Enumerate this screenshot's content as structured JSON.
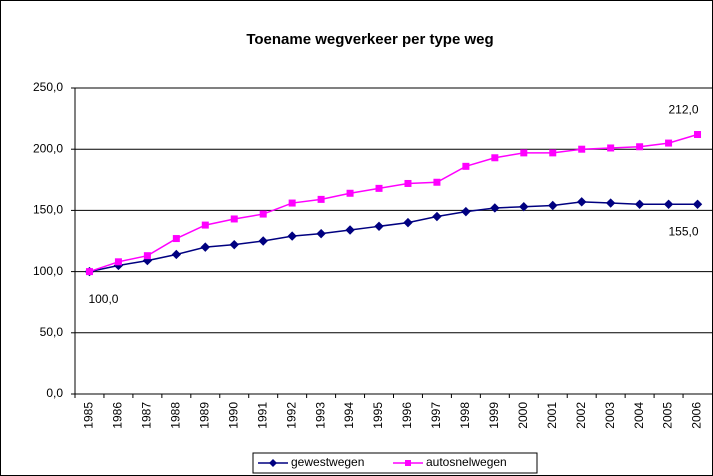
{
  "chart_data": {
    "type": "line",
    "title": "Toename wegverkeer per type weg",
    "categories": [
      "1985",
      "1986",
      "1987",
      "1988",
      "1989",
      "1990",
      "1991",
      "1992",
      "1993",
      "1994",
      "1995",
      "1996",
      "1997",
      "1998",
      "1999",
      "2000",
      "2001",
      "2002",
      "2003",
      "2004",
      "2005",
      "2006"
    ],
    "series": [
      {
        "name": "gewestwegen",
        "color": "#000080",
        "marker": "diamond",
        "values": [
          100,
          105,
          109,
          114,
          120,
          122,
          125,
          129,
          131,
          134,
          137,
          140,
          145,
          149,
          152,
          153,
          154,
          157,
          156,
          155,
          155,
          155
        ],
        "value_labels": [
          "100,0",
          null,
          null,
          null,
          null,
          null,
          null,
          null,
          null,
          null,
          null,
          null,
          null,
          null,
          null,
          null,
          null,
          null,
          null,
          null,
          null,
          "155,0"
        ]
      },
      {
        "name": "autosnelwegen",
        "color": "#ff00ff",
        "marker": "square",
        "values": [
          100,
          108,
          113,
          127,
          138,
          143,
          147,
          156,
          159,
          164,
          168,
          172,
          173,
          186,
          193,
          197,
          197,
          200,
          201,
          202,
          205,
          212
        ],
        "value_labels": [
          null,
          null,
          null,
          null,
          null,
          null,
          null,
          null,
          null,
          null,
          null,
          null,
          null,
          null,
          null,
          null,
          null,
          null,
          null,
          null,
          null,
          "212,0"
        ]
      }
    ],
    "ylim": [
      0,
      250
    ],
    "yticks": [
      {
        "value": 0,
        "label": "0,0"
      },
      {
        "value": 50,
        "label": "50,0"
      },
      {
        "value": 100,
        "label": "100,0"
      },
      {
        "value": 150,
        "label": "150,0"
      },
      {
        "value": 200,
        "label": "200,0"
      },
      {
        "value": 250,
        "label": "250,0"
      }
    ],
    "grid": true,
    "legend": "bottom"
  }
}
